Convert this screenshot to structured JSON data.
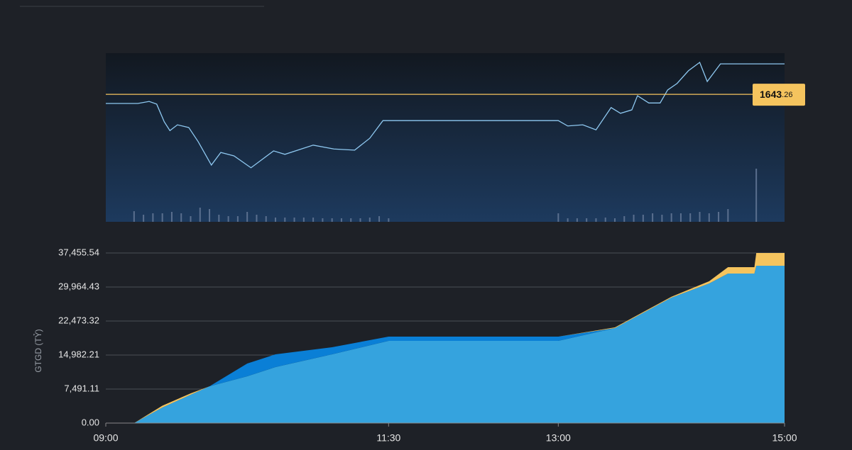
{
  "chart_data": [
    {
      "type": "line",
      "color": "#8ec8f0",
      "xlim": [
        540,
        900
      ],
      "ylim": [
        1610,
        1654
      ],
      "x": [
        540,
        557,
        563,
        567,
        571,
        574,
        578,
        584,
        589,
        596,
        601,
        608,
        617,
        629,
        635,
        650,
        661,
        672,
        680,
        687,
        690,
        780,
        785,
        793,
        800,
        808,
        813,
        819,
        822,
        828,
        834,
        838,
        843,
        849,
        855,
        859,
        866,
        900
      ],
      "values": [
        1640.87,
        1640.87,
        1641.4,
        1640.7,
        1636.1,
        1633.8,
        1635.3,
        1634.6,
        1630.9,
        1624.8,
        1628.1,
        1627.2,
        1624.1,
        1628.5,
        1627.6,
        1630.0,
        1629.0,
        1628.7,
        1631.8,
        1636.4,
        1636.4,
        1636.4,
        1635.0,
        1635.3,
        1634.0,
        1639.8,
        1638.3,
        1639.2,
        1642.9,
        1641.0,
        1641.0,
        1644.4,
        1646.1,
        1649.4,
        1651.6,
        1646.6,
        1651.2,
        1651.2
      ],
      "reference": {
        "value": 1643.26,
        "color": "#f5c45e",
        "label_parts": [
          "1643",
          ".26"
        ]
      },
      "volume": {
        "color": "#5a6f8e",
        "vlim": [
          0,
          80
        ],
        "x": [
          555,
          560,
          565,
          570,
          575,
          580,
          585,
          590,
          595,
          600,
          605,
          610,
          615,
          620,
          625,
          630,
          635,
          640,
          645,
          650,
          655,
          660,
          665,
          670,
          675,
          680,
          685,
          690,
          780,
          785,
          790,
          795,
          800,
          805,
          810,
          815,
          820,
          825,
          830,
          835,
          840,
          845,
          850,
          855,
          860,
          865,
          870,
          885
        ],
        "values": [
          15,
          10,
          12,
          12,
          14,
          12,
          8,
          20,
          18,
          10,
          8,
          8,
          14,
          10,
          8,
          6,
          6,
          6,
          6,
          6,
          5,
          5,
          5,
          5,
          5,
          6,
          8,
          5,
          12,
          5,
          5,
          5,
          5,
          6,
          5,
          8,
          10,
          10,
          12,
          10,
          12,
          12,
          12,
          14,
          12,
          14,
          18,
          75
        ]
      }
    },
    {
      "type": "area",
      "stacked": true,
      "y_label": "GTGD (TỶ)",
      "grid": true,
      "xlim": [
        540,
        900
      ],
      "ylim": [
        0,
        37455.54
      ],
      "yticks": [
        {
          "value": 0,
          "label": "0.00"
        },
        {
          "value": 7491.11,
          "label": "7,491.11"
        },
        {
          "value": 14982.21,
          "label": "14,982.21"
        },
        {
          "value": 22473.32,
          "label": "22,473.32"
        },
        {
          "value": 29964.43,
          "label": "29,964.43"
        },
        {
          "value": 37455.54,
          "label": "37,455.54"
        }
      ],
      "xticks": [
        {
          "value": 540,
          "label": "09:00"
        },
        {
          "value": 690,
          "label": "11:30"
        },
        {
          "value": 780,
          "label": "13:00"
        },
        {
          "value": 900,
          "label": "15:00"
        }
      ],
      "x": [
        540,
        555,
        570,
        585,
        595,
        615,
        630,
        660,
        690,
        780,
        810,
        840,
        860,
        870,
        880,
        884,
        885,
        900
      ],
      "series": [
        {
          "color": "#35a3de",
          "values": [
            0,
            0,
            3430,
            6240,
            8100,
            10300,
            12330,
            15140,
            18100,
            18100,
            20910,
            27620,
            30740,
            32930,
            32930,
            32930,
            34640,
            34640
          ]
        },
        {
          "color": "#0a7fd6",
          "values": [
            0,
            0,
            0,
            0,
            0,
            2800,
            2810,
            1560,
            940,
            940,
            0,
            0,
            0,
            0,
            0,
            0,
            0,
            0
          ]
        },
        {
          "color": "#f5c45e",
          "values": [
            0,
            0,
            400,
            300,
            0,
            0,
            0,
            0,
            0,
            0,
            150,
            200,
            500,
            1400,
            1400,
            1400,
            2815,
            2815
          ]
        }
      ]
    }
  ]
}
